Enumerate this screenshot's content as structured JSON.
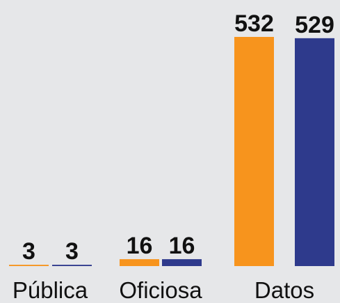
{
  "chart_data": {
    "type": "bar",
    "categories": [
      "Pública",
      "Oficiosa",
      "Datos"
    ],
    "series": [
      {
        "color": "#f7941d",
        "values": [
          3,
          16,
          532
        ]
      },
      {
        "color": "#2e3a8c",
        "values": [
          3,
          16,
          529
        ]
      }
    ]
  }
}
